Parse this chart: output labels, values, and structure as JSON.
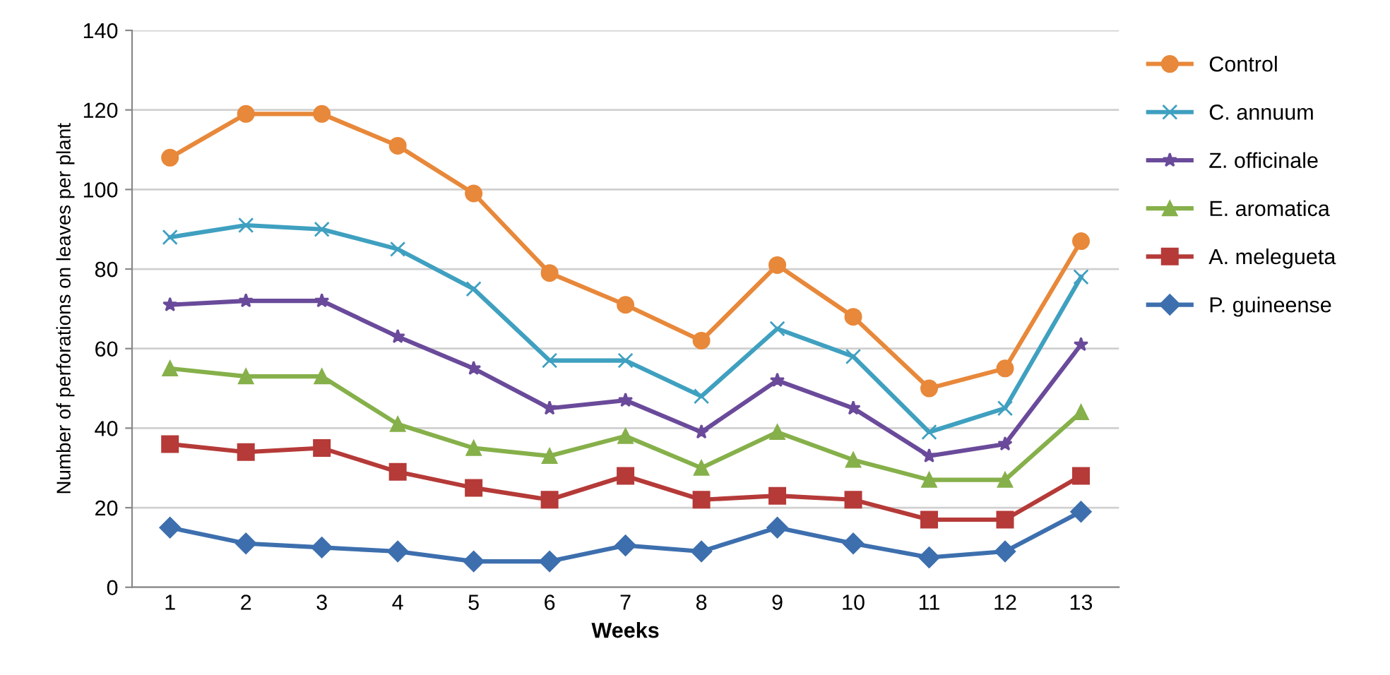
{
  "chart_data": {
    "type": "line",
    "xlabel": "Weeks",
    "ylabel": "Number of perforations on leaves per plant",
    "categories": [
      "1",
      "2",
      "3",
      "4",
      "5",
      "6",
      "7",
      "8",
      "9",
      "10",
      "11",
      "12",
      "13"
    ],
    "ylim": [
      0,
      140
    ],
    "yticks": [
      0,
      20,
      40,
      60,
      80,
      100,
      120,
      140
    ],
    "grid": "y",
    "legend": "right",
    "series": [
      {
        "name": "Control",
        "color": "#e8883a",
        "marker": "circle",
        "values": [
          108,
          119,
          119,
          111,
          99,
          79,
          71,
          62,
          81,
          68,
          50,
          55,
          87
        ]
      },
      {
        "name": "C. annuum",
        "color": "#3fa0c0",
        "marker": "cross",
        "values": [
          88,
          91,
          90,
          85,
          75,
          57,
          57,
          48,
          65,
          58,
          39,
          45,
          78
        ]
      },
      {
        "name": "Z. officinale",
        "color": "#6a4a9a",
        "marker": "star",
        "values": [
          71,
          72,
          72,
          63,
          55,
          45,
          47,
          39,
          52,
          45,
          33,
          36,
          61
        ]
      },
      {
        "name": "E. aromatica",
        "color": "#86b04a",
        "marker": "triangle",
        "values": [
          55,
          53,
          53,
          41,
          35,
          33,
          38,
          30,
          39,
          32,
          27,
          27,
          44
        ]
      },
      {
        "name": "A. melegueta",
        "color": "#b53a38",
        "marker": "square",
        "values": [
          36,
          34,
          35,
          29,
          25,
          22,
          28,
          22,
          23,
          22,
          17,
          17,
          28
        ]
      },
      {
        "name": "P. guineense",
        "color": "#3d6fae",
        "marker": "diamond",
        "values": [
          15,
          11,
          10,
          9,
          6.5,
          6.5,
          10.5,
          9,
          15,
          11,
          7.5,
          9,
          19
        ]
      }
    ]
  }
}
